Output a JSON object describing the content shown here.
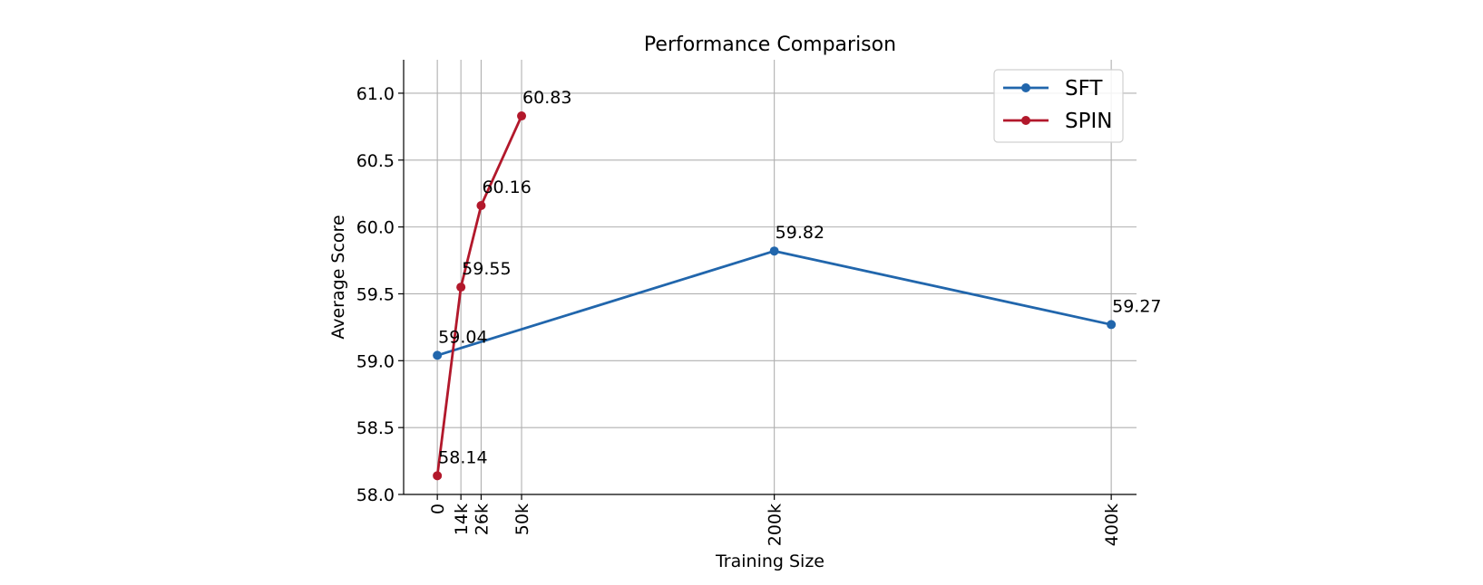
{
  "chart_data": {
    "type": "line",
    "title": "Performance Comparison",
    "xlabel": "Training Size",
    "ylabel": "Average Score",
    "ylim": [
      58.0,
      61.25
    ],
    "x_ticks": [
      {
        "value": 0,
        "label": "0"
      },
      {
        "value": 14000,
        "label": "14k"
      },
      {
        "value": 26000,
        "label": "26k"
      },
      {
        "value": 50000,
        "label": "50k"
      },
      {
        "value": 200000,
        "label": "200k"
      },
      {
        "value": 400000,
        "label": "400k"
      }
    ],
    "y_ticks": [
      {
        "value": 58.0,
        "label": "58.0"
      },
      {
        "value": 58.5,
        "label": "58.5"
      },
      {
        "value": 59.0,
        "label": "59.0"
      },
      {
        "value": 59.5,
        "label": "59.5"
      },
      {
        "value": 60.0,
        "label": "60.0"
      },
      {
        "value": 60.5,
        "label": "60.5"
      },
      {
        "value": 61.0,
        "label": "61.0"
      }
    ],
    "grid": true,
    "legend_position": "top-right",
    "series": [
      {
        "name": "SFT",
        "color": "#2166ac",
        "points": [
          {
            "x": 0,
            "y": 59.04,
            "label": "59.04"
          },
          {
            "x": 200000,
            "y": 59.82,
            "label": "59.82"
          },
          {
            "x": 400000,
            "y": 59.27,
            "label": "59.27"
          }
        ]
      },
      {
        "name": "SPIN",
        "color": "#b2182b",
        "points": [
          {
            "x": 0,
            "y": 58.14,
            "label": "58.14"
          },
          {
            "x": 14000,
            "y": 59.55,
            "label": "59.55"
          },
          {
            "x": 26000,
            "y": 60.16,
            "label": "60.16"
          },
          {
            "x": 50000,
            "y": 60.83,
            "label": "60.83"
          }
        ]
      }
    ]
  }
}
